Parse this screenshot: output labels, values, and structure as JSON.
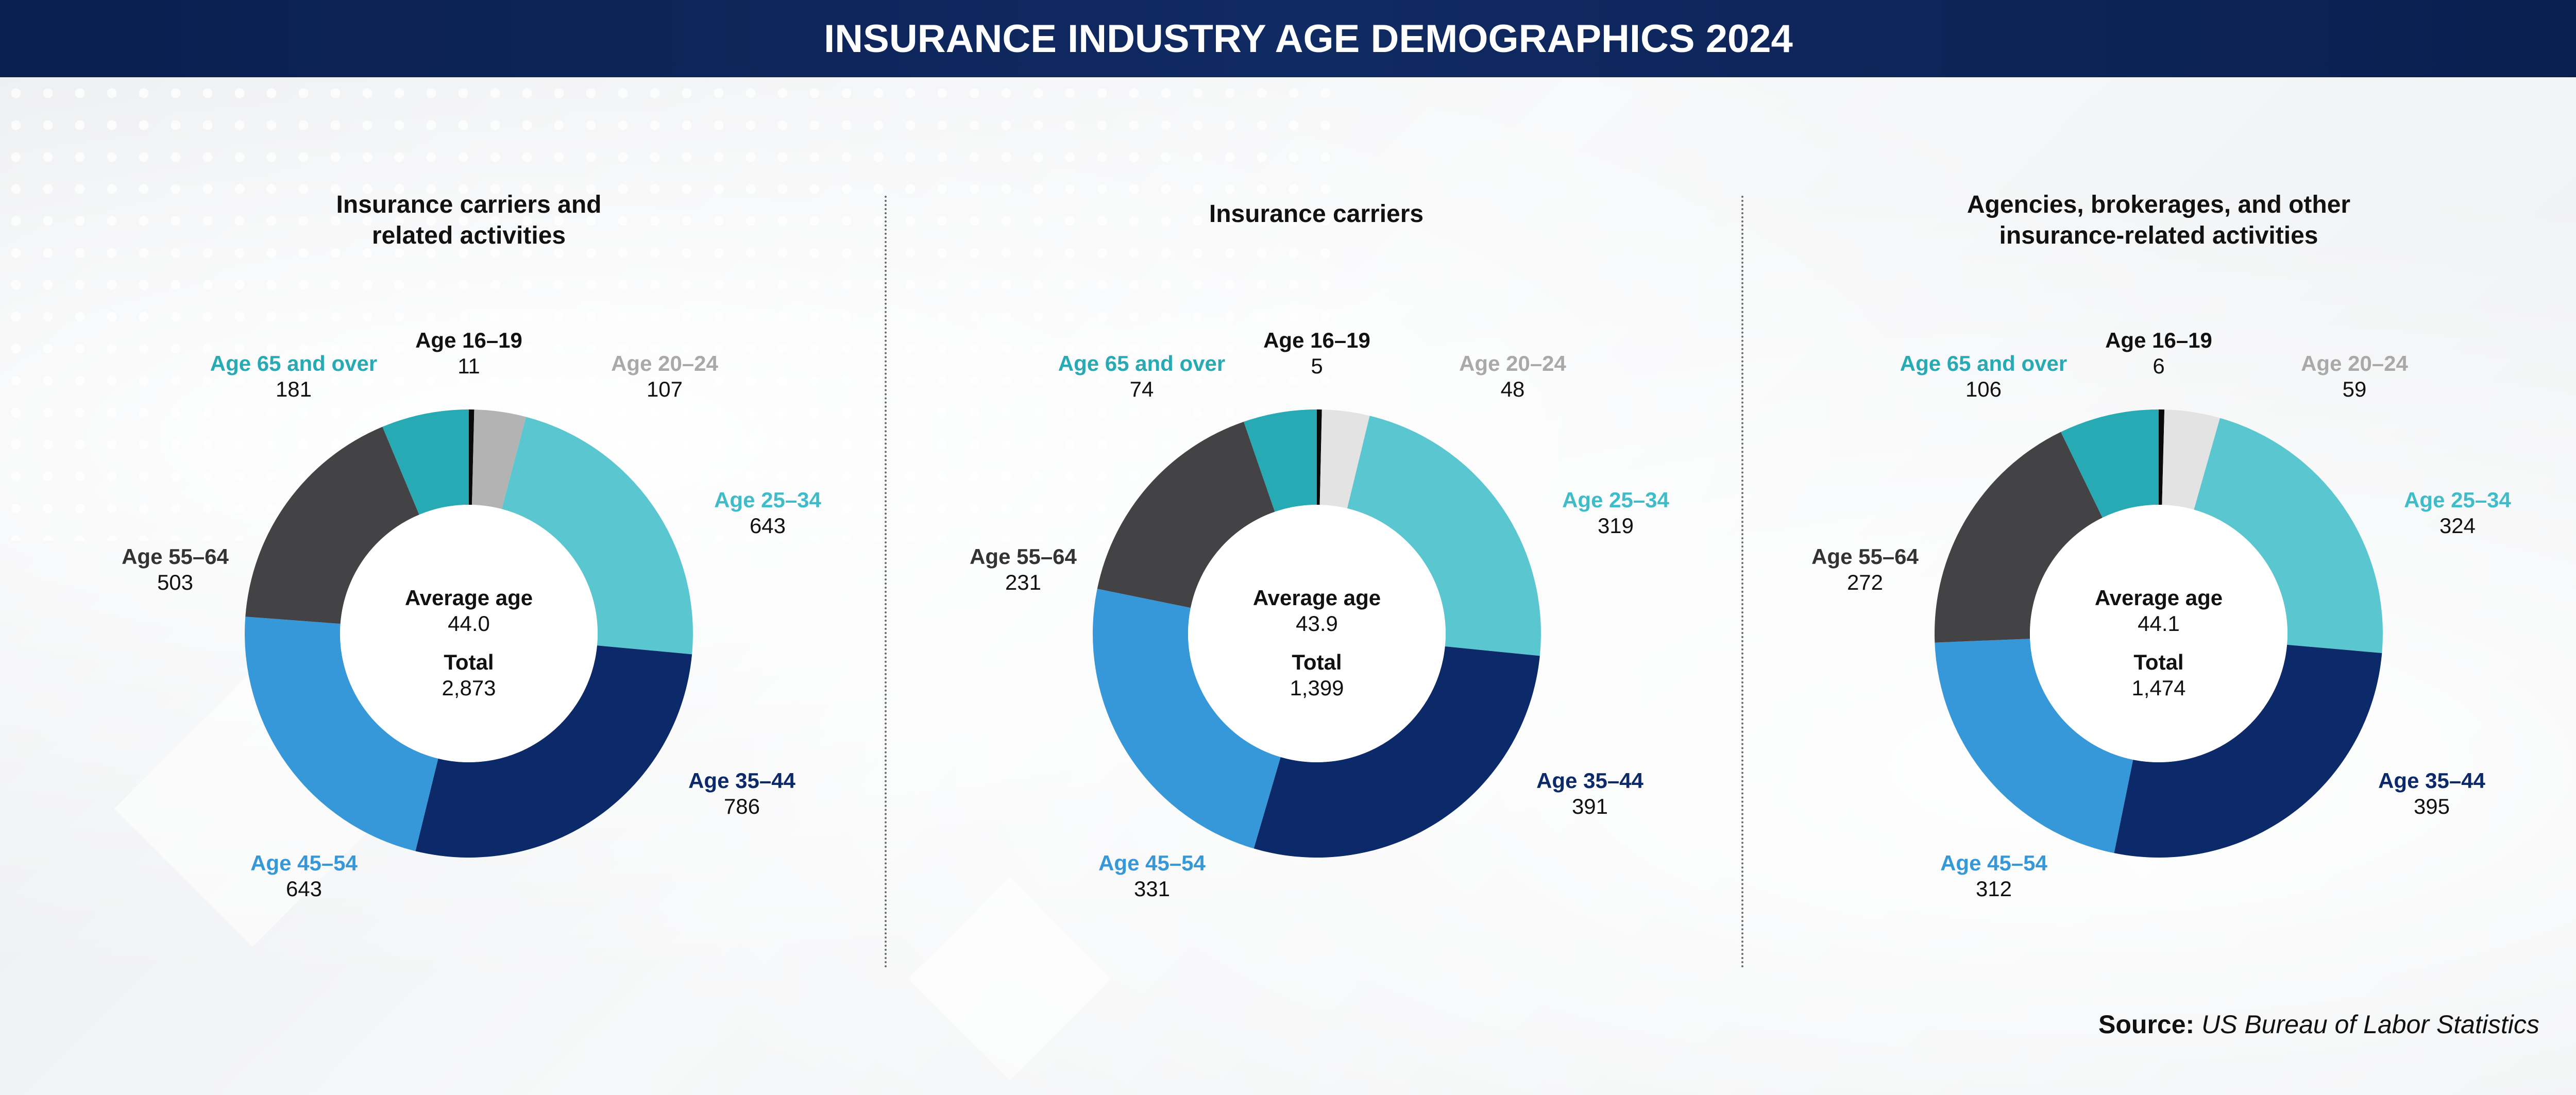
{
  "header": {
    "title": "INSURANCE INDUSTRY AGE DEMOGRAPHICS 2024"
  },
  "source": {
    "label": "Source:",
    "value": "US Bureau of Labor Statistics"
  },
  "chart_data": [
    {
      "type": "pie",
      "title_lines": [
        "Insurance carriers and",
        "related activities"
      ],
      "categories": [
        "Age 16–19",
        "Age 20–24",
        "Age 25–34",
        "Age 35–44",
        "Age 45–54",
        "Age 55–64",
        "Age 65 and over"
      ],
      "values": [
        11,
        107,
        643,
        786,
        643,
        503,
        181
      ],
      "value_labels": [
        "11",
        "107",
        "643",
        "786",
        "643",
        "503",
        "181"
      ],
      "center": {
        "avg_label": "Average age",
        "avg_value": "44.0",
        "total_label": "Total",
        "total_value": "2,873"
      }
    },
    {
      "type": "pie",
      "title_lines": [
        "Insurance carriers"
      ],
      "categories": [
        "Age 16–19",
        "Age 20–24",
        "Age 25–34",
        "Age 35–44",
        "Age 45–54",
        "Age 55–64",
        "Age 65 and over"
      ],
      "values": [
        5,
        48,
        319,
        391,
        331,
        231,
        74
      ],
      "value_labels": [
        "5",
        "48",
        "319",
        "391",
        "331",
        "231",
        "74"
      ],
      "center": {
        "avg_label": "Average age",
        "avg_value": "43.9",
        "total_label": "Total",
        "total_value": "1,399"
      }
    },
    {
      "type": "pie",
      "title_lines": [
        "Agencies, brokerages, and other",
        "insurance-related activities"
      ],
      "categories": [
        "Age 16–19",
        "Age 20–24",
        "Age 25–34",
        "Age 35–44",
        "Age 45–54",
        "Age 55–64",
        "Age 65 and over"
      ],
      "values": [
        6,
        59,
        324,
        395,
        312,
        272,
        106
      ],
      "value_labels": [
        "6",
        "59",
        "324",
        "395",
        "312",
        "272",
        "106"
      ],
      "center": {
        "avg_label": "Average age",
        "avg_value": "44.1",
        "total_label": "Total",
        "total_value": "1,474"
      }
    }
  ],
  "colors": {
    "slices": [
      "#0a0a0a",
      "#b3b3b3",
      "#5ac6cf",
      "#0c2a69",
      "#3698d8",
      "#434345",
      "#27aab4"
    ],
    "labels": [
      "#111111",
      "#a9a9a9",
      "#3fbcc7",
      "#0c2a69",
      "#3698d8",
      "#333333",
      "#27aab4"
    ],
    "slice_20_24_light": "#e3e3e3"
  }
}
